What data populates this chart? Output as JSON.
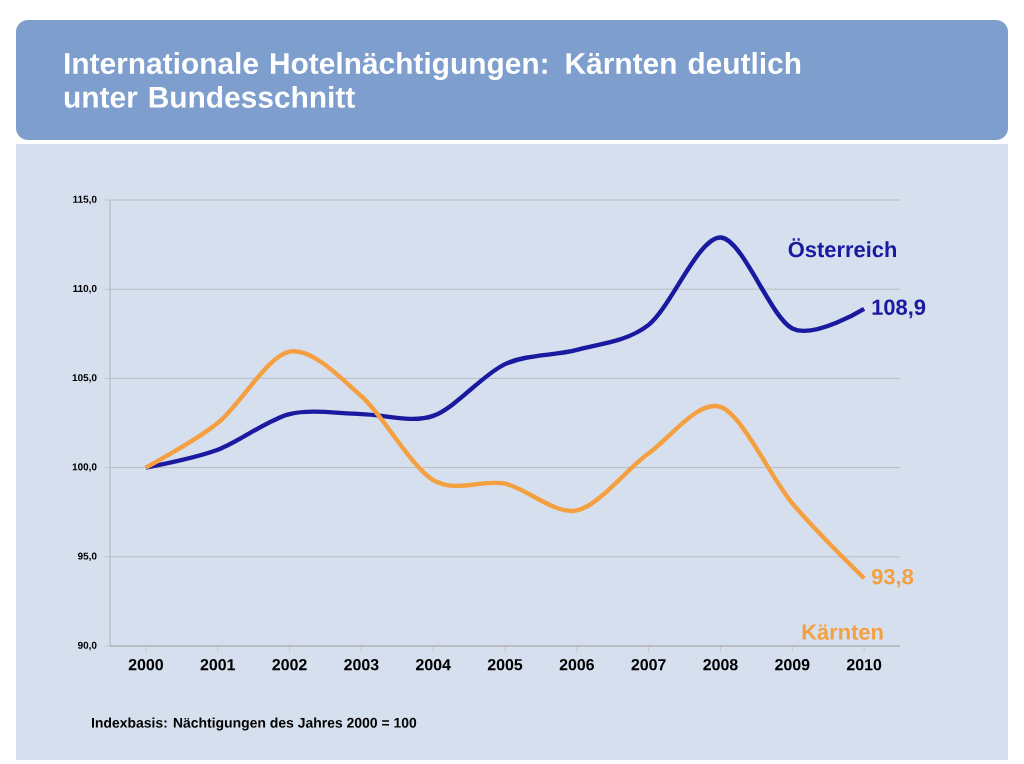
{
  "chart_data": {
    "type": "line",
    "title": "Internationale Hotelnächtigungen: Kärnten deutlich unter Bundesschnitt",
    "categories": [
      "2000",
      "2001",
      "2002",
      "2003",
      "2004",
      "2005",
      "2006",
      "2007",
      "2008",
      "2009",
      "2010"
    ],
    "series": [
      {
        "name": "Österreich",
        "color": "#1a1aa0",
        "values": [
          100,
          101,
          103,
          103,
          102.9,
          105.8,
          106.6,
          108,
          112.9,
          107.8,
          108.9
        ],
        "value_labels": [
          null,
          null,
          null,
          null,
          null,
          null,
          null,
          null,
          null,
          null,
          "108,9"
        ]
      },
      {
        "name": "Kärnten",
        "color": "#f5a040",
        "values": [
          100,
          102.5,
          106.5,
          104,
          99.3,
          99.1,
          97.6,
          100.8,
          103.4,
          98,
          93.8
        ],
        "value_labels": [
          null,
          null,
          null,
          null,
          null,
          null,
          null,
          null,
          null,
          null,
          "93,8"
        ]
      }
    ],
    "ylim": [
      90,
      115
    ],
    "yticks": [
      {
        "value": 90,
        "label": "90,0"
      },
      {
        "value": 95,
        "label": "95,0"
      },
      {
        "value": 100,
        "label": "100,0"
      },
      {
        "value": 105,
        "label": "105,0"
      },
      {
        "value": 110,
        "label": "110,0"
      },
      {
        "value": 115,
        "label": "115,0"
      }
    ],
    "grid": "y",
    "line_style": "solid",
    "marker": "none",
    "annotations": [
      "Indexbasis: Nächtigungen des Jahres 2000 = 100"
    ]
  }
}
